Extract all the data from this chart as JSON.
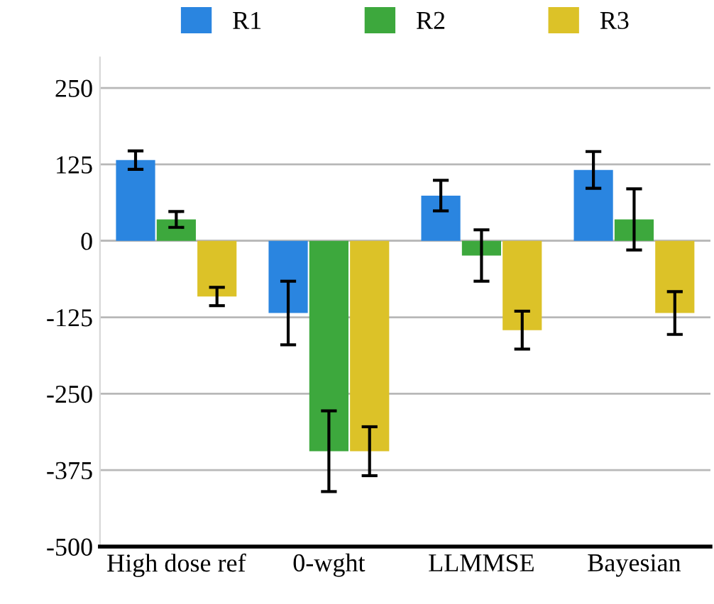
{
  "chart_data": {
    "type": "bar",
    "categories": [
      "High dose ref",
      "0-wght",
      "LLMMSE",
      "Bayesian"
    ],
    "series": [
      {
        "name": "R1",
        "color": "#2a85e0",
        "values": [
          132,
          -118,
          74,
          116
        ],
        "errors": [
          15,
          52,
          25,
          30
        ]
      },
      {
        "name": "R2",
        "color": "#3da83d",
        "values": [
          35,
          -344,
          -24,
          35
        ],
        "errors": [
          13,
          66,
          42,
          50
        ]
      },
      {
        "name": "R3",
        "color": "#dcc228",
        "values": [
          -91,
          -344,
          -146,
          -118
        ],
        "errors": [
          15,
          40,
          31,
          35
        ]
      }
    ],
    "ylim": [
      -500,
      300
    ],
    "yticks": [
      -500,
      -375,
      -250,
      -125,
      0,
      125,
      250
    ],
    "grid": "y",
    "legend": "top"
  }
}
